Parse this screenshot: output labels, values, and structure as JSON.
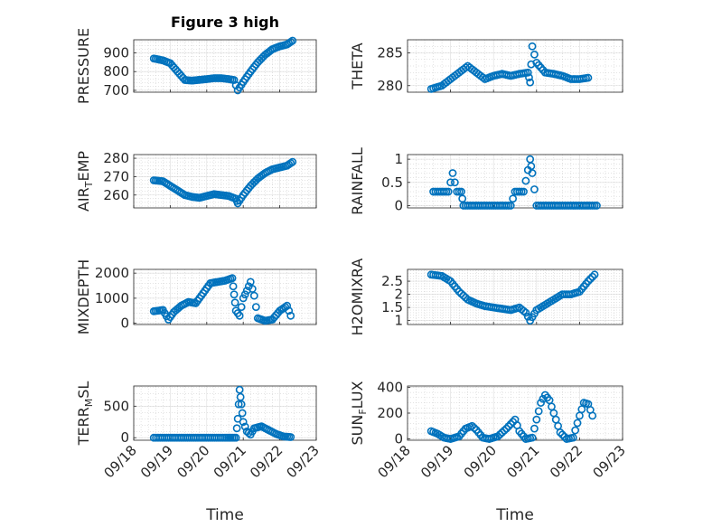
{
  "chart_data": [
    {
      "id": "pressure",
      "type": "scatter",
      "title": "Figure 3 high",
      "ylabel": "PRESSURE",
      "ylim": [
        690,
        970
      ],
      "yticks": [
        700,
        800,
        900
      ],
      "xlim": [
        0,
        5
      ],
      "x_ticklabels": [
        "09/18",
        "09/19",
        "09/20",
        "09/21",
        "09/22",
        "09/23"
      ],
      "show_xticklabels": false,
      "points": [
        [
          0.55,
          870
        ],
        [
          0.8,
          860
        ],
        [
          1.0,
          845
        ],
        [
          1.2,
          800
        ],
        [
          1.4,
          755
        ],
        [
          1.6,
          752
        ],
        [
          1.8,
          756
        ],
        [
          2.0,
          760
        ],
        [
          2.2,
          765
        ],
        [
          2.4,
          765
        ],
        [
          2.6,
          760
        ],
        [
          2.75,
          755
        ],
        [
          2.85,
          700
        ],
        [
          3.0,
          745
        ],
        [
          3.2,
          800
        ],
        [
          3.4,
          850
        ],
        [
          3.6,
          890
        ],
        [
          3.8,
          920
        ],
        [
          4.0,
          935
        ],
        [
          4.2,
          945
        ],
        [
          4.35,
          965
        ]
      ]
    },
    {
      "id": "theta",
      "type": "scatter",
      "title": "",
      "ylabel": "THETA",
      "ylim": [
        279,
        287
      ],
      "yticks": [
        280,
        285
      ],
      "xlim": [
        0,
        5
      ],
      "show_xticklabels": false,
      "points": [
        [
          0.55,
          279.5
        ],
        [
          0.8,
          280
        ],
        [
          1.0,
          281
        ],
        [
          1.2,
          282
        ],
        [
          1.4,
          283
        ],
        [
          1.6,
          282
        ],
        [
          1.8,
          281
        ],
        [
          2.0,
          281.5
        ],
        [
          2.2,
          281.8
        ],
        [
          2.4,
          281.5
        ],
        [
          2.6,
          281.8
        ],
        [
          2.8,
          282
        ],
        [
          2.85,
          280.5
        ],
        [
          2.9,
          286
        ],
        [
          3.0,
          283.5
        ],
        [
          3.2,
          282
        ],
        [
          3.4,
          281.8
        ],
        [
          3.6,
          281.5
        ],
        [
          3.8,
          281
        ],
        [
          4.0,
          281
        ],
        [
          4.2,
          281.2
        ]
      ]
    },
    {
      "id": "airtemp",
      "type": "scatter",
      "title": "",
      "ylabel": "AIR_TEMP",
      "ylim": [
        253,
        282
      ],
      "yticks": [
        260,
        270,
        280
      ],
      "xlim": [
        0,
        5
      ],
      "show_xticklabels": false,
      "points": [
        [
          0.55,
          268
        ],
        [
          0.8,
          267.5
        ],
        [
          1.0,
          265
        ],
        [
          1.2,
          262.5
        ],
        [
          1.4,
          260
        ],
        [
          1.6,
          259
        ],
        [
          1.8,
          258.5
        ],
        [
          2.0,
          259.5
        ],
        [
          2.2,
          260.5
        ],
        [
          2.4,
          260
        ],
        [
          2.6,
          259.5
        ],
        [
          2.8,
          258
        ],
        [
          2.85,
          255.5
        ],
        [
          3.0,
          260
        ],
        [
          3.2,
          265
        ],
        [
          3.4,
          269
        ],
        [
          3.6,
          272
        ],
        [
          3.8,
          274
        ],
        [
          4.0,
          275
        ],
        [
          4.2,
          276
        ],
        [
          4.35,
          278
        ]
      ]
    },
    {
      "id": "rainfall",
      "type": "scatter",
      "title": "",
      "ylabel": "RAINFALL",
      "ylim": [
        -0.05,
        1.1
      ],
      "yticks": [
        0,
        0.5,
        1
      ],
      "ytick_labels": [
        "0",
        "0.5",
        "1"
      ],
      "xlim": [
        0,
        5
      ],
      "show_xticklabels": false,
      "points": [
        [
          0.6,
          0.3
        ],
        [
          0.8,
          0.3
        ],
        [
          0.95,
          0.3
        ],
        [
          1.05,
          0.7
        ],
        [
          1.15,
          0.3
        ],
        [
          1.25,
          0.3
        ],
        [
          1.3,
          0
        ],
        [
          1.5,
          0
        ],
        [
          1.8,
          0
        ],
        [
          2.1,
          0
        ],
        [
          2.4,
          0
        ],
        [
          2.5,
          0.3
        ],
        [
          2.7,
          0.3
        ],
        [
          2.85,
          1.0
        ],
        [
          2.9,
          0.7
        ],
        [
          3.0,
          0
        ],
        [
          3.3,
          0
        ],
        [
          3.6,
          0
        ],
        [
          3.9,
          0
        ],
        [
          4.2,
          0
        ],
        [
          4.4,
          0
        ]
      ]
    },
    {
      "id": "mixdepth",
      "type": "scatter",
      "title": "",
      "ylabel": "MIXDEPTH",
      "ylim": [
        -50,
        2150
      ],
      "yticks": [
        0,
        1000,
        2000
      ],
      "xlim": [
        0,
        5
      ],
      "show_xticklabels": false,
      "points": [
        [
          0.55,
          480
        ],
        [
          0.8,
          530
        ],
        [
          0.95,
          150
        ],
        [
          1.1,
          450
        ],
        [
          1.3,
          700
        ],
        [
          1.5,
          850
        ],
        [
          1.7,
          800
        ],
        [
          1.9,
          1200
        ],
        [
          2.1,
          1600
        ],
        [
          2.3,
          1650
        ],
        [
          2.5,
          1700
        ],
        [
          2.7,
          1800
        ],
        [
          2.75,
          1150
        ],
        [
          2.8,
          500
        ],
        [
          2.9,
          300
        ],
        [
          3.0,
          1000
        ],
        [
          3.1,
          1300
        ],
        [
          3.2,
          1650
        ],
        [
          3.3,
          1100
        ],
        [
          3.4,
          200
        ],
        [
          3.6,
          100
        ],
        [
          3.8,
          150
        ],
        [
          4.0,
          500
        ],
        [
          4.2,
          700
        ],
        [
          4.3,
          300
        ]
      ]
    },
    {
      "id": "h2omixra",
      "type": "scatter",
      "title": "",
      "ylabel": "H2OMIXRA",
      "ylim": [
        0.85,
        2.95
      ],
      "yticks": [
        1,
        1.5,
        2,
        2.5
      ],
      "ytick_labels": [
        "1",
        "1.5",
        "2",
        "2.5"
      ],
      "xlim": [
        0,
        5
      ],
      "show_xticklabels": false,
      "points": [
        [
          0.55,
          2.75
        ],
        [
          0.8,
          2.7
        ],
        [
          1.0,
          2.5
        ],
        [
          1.2,
          2.1
        ],
        [
          1.4,
          1.8
        ],
        [
          1.6,
          1.65
        ],
        [
          1.8,
          1.55
        ],
        [
          2.0,
          1.5
        ],
        [
          2.2,
          1.45
        ],
        [
          2.4,
          1.4
        ],
        [
          2.6,
          1.5
        ],
        [
          2.75,
          1.3
        ],
        [
          2.85,
          1.0
        ],
        [
          3.0,
          1.4
        ],
        [
          3.2,
          1.6
        ],
        [
          3.4,
          1.8
        ],
        [
          3.6,
          2.0
        ],
        [
          3.8,
          2.0
        ],
        [
          4.0,
          2.1
        ],
        [
          4.2,
          2.5
        ],
        [
          4.35,
          2.75
        ]
      ]
    },
    {
      "id": "terr",
      "type": "scatter",
      "title": "",
      "ylabel": "TERR_MSL",
      "ylim": [
        -40,
        820
      ],
      "yticks": [
        0,
        500
      ],
      "xlim": [
        0,
        5
      ],
      "x_ticklabels": [
        "09/18",
        "09/19",
        "09/20",
        "09/21",
        "09/22",
        "09/23"
      ],
      "show_xticklabels": true,
      "xlabel": "Time",
      "points": [
        [
          0.55,
          0
        ],
        [
          0.9,
          0
        ],
        [
          1.3,
          0
        ],
        [
          1.7,
          0
        ],
        [
          2.1,
          0
        ],
        [
          2.5,
          0
        ],
        [
          2.8,
          0
        ],
        [
          2.85,
          300
        ],
        [
          2.9,
          760
        ],
        [
          2.95,
          530
        ],
        [
          3.0,
          250
        ],
        [
          3.1,
          100
        ],
        [
          3.2,
          50
        ],
        [
          3.3,
          150
        ],
        [
          3.5,
          180
        ],
        [
          3.7,
          120
        ],
        [
          3.9,
          60
        ],
        [
          4.1,
          20
        ],
        [
          4.3,
          10
        ]
      ]
    },
    {
      "id": "sunflux",
      "type": "scatter",
      "title": "",
      "ylabel": "SUN_FLUX",
      "ylim": [
        -10,
        410
      ],
      "yticks": [
        0,
        200,
        400
      ],
      "xlim": [
        0,
        5
      ],
      "x_ticklabels": [
        "09/18",
        "09/19",
        "09/20",
        "09/21",
        "09/22",
        "09/23"
      ],
      "show_xticklabels": true,
      "xlabel": "Time",
      "points": [
        [
          0.55,
          60
        ],
        [
          0.7,
          40
        ],
        [
          0.85,
          10
        ],
        [
          1.0,
          0
        ],
        [
          1.2,
          20
        ],
        [
          1.35,
          80
        ],
        [
          1.5,
          100
        ],
        [
          1.6,
          70
        ],
        [
          1.75,
          10
        ],
        [
          1.9,
          0
        ],
        [
          2.1,
          20
        ],
        [
          2.3,
          80
        ],
        [
          2.5,
          150
        ],
        [
          2.6,
          60
        ],
        [
          2.75,
          0
        ],
        [
          2.9,
          10
        ],
        [
          3.0,
          150
        ],
        [
          3.1,
          280
        ],
        [
          3.2,
          340
        ],
        [
          3.3,
          300
        ],
        [
          3.4,
          200
        ],
        [
          3.55,
          50
        ],
        [
          3.7,
          0
        ],
        [
          3.85,
          10
        ],
        [
          4.0,
          180
        ],
        [
          4.1,
          280
        ],
        [
          4.2,
          270
        ],
        [
          4.3,
          180
        ]
      ]
    }
  ]
}
